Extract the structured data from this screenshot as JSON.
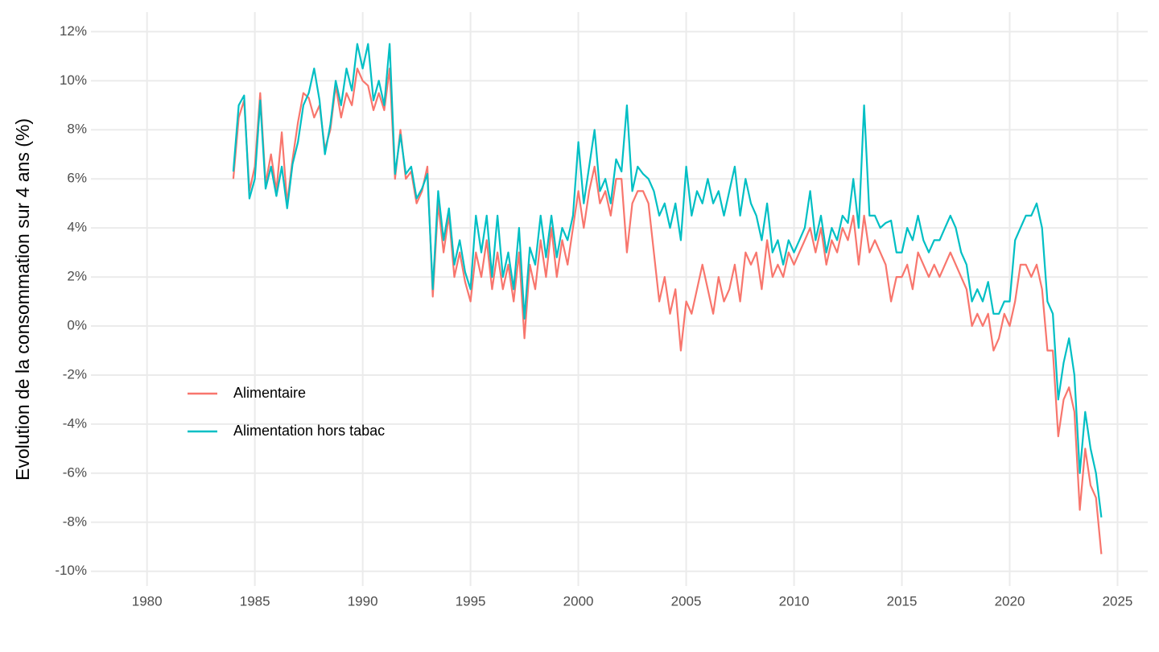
{
  "chart_data": {
    "type": "line",
    "y_label": "Evolution de la consommation sur 4 ans (%)",
    "x": [
      1984,
      1984.25,
      1984.5,
      1984.75,
      1985,
      1985.25,
      1985.5,
      1985.75,
      1986,
      1986.25,
      1986.5,
      1986.75,
      1987,
      1987.25,
      1987.5,
      1987.75,
      1988,
      1988.25,
      1988.5,
      1988.75,
      1989,
      1989.25,
      1989.5,
      1989.75,
      1990,
      1990.25,
      1990.5,
      1990.75,
      1991,
      1991.25,
      1991.5,
      1991.75,
      1992,
      1992.25,
      1992.5,
      1992.75,
      1993,
      1993.25,
      1993.5,
      1993.75,
      1994,
      1994.25,
      1994.5,
      1994.75,
      1995,
      1995.25,
      1995.5,
      1995.75,
      1996,
      1996.25,
      1996.5,
      1996.75,
      1997,
      1997.25,
      1997.5,
      1997.75,
      1998,
      1998.25,
      1998.5,
      1998.75,
      1999,
      1999.25,
      1999.5,
      1999.75,
      2000,
      2000.25,
      2000.5,
      2000.75,
      2001,
      2001.25,
      2001.5,
      2001.75,
      2002,
      2002.25,
      2002.5,
      2002.75,
      2003,
      2003.25,
      2003.5,
      2003.75,
      2004,
      2004.25,
      2004.5,
      2004.75,
      2005,
      2005.25,
      2005.5,
      2005.75,
      2006,
      2006.25,
      2006.5,
      2006.75,
      2007,
      2007.25,
      2007.5,
      2007.75,
      2008,
      2008.25,
      2008.5,
      2008.75,
      2009,
      2009.25,
      2009.5,
      2009.75,
      2010,
      2010.25,
      2010.5,
      2010.75,
      2011,
      2011.25,
      2011.5,
      2011.75,
      2012,
      2012.25,
      2012.5,
      2012.75,
      2013,
      2013.25,
      2013.5,
      2013.75,
      2014,
      2014.25,
      2014.5,
      2014.75,
      2015,
      2015.25,
      2015.5,
      2015.75,
      2016,
      2016.25,
      2016.5,
      2016.75,
      2017,
      2017.25,
      2017.5,
      2017.75,
      2018,
      2018.25,
      2018.5,
      2018.75,
      2019,
      2019.25,
      2019.5,
      2019.75,
      2020,
      2020.25,
      2020.5,
      2020.75,
      2021,
      2021.25,
      2021.5,
      2021.75,
      2022,
      2022.25,
      2022.5,
      2022.75,
      2023,
      2023.25,
      2023.5,
      2023.75,
      2024,
      2024.25
    ],
    "series": [
      {
        "name": "Alimentaire",
        "color": "#F8766D",
        "values": [
          6.0,
          8.5,
          9.2,
          5.5,
          6.5,
          9.5,
          5.8,
          7.0,
          5.5,
          7.9,
          5.0,
          6.8,
          8.3,
          9.5,
          9.3,
          8.5,
          9.0,
          7.2,
          8.0,
          9.8,
          8.5,
          9.5,
          9.0,
          10.5,
          10.0,
          9.8,
          8.8,
          9.5,
          8.8,
          10.5,
          6.0,
          8.0,
          6.0,
          6.3,
          5.0,
          5.5,
          6.5,
          1.2,
          5.0,
          3.0,
          4.5,
          2.0,
          3.0,
          1.8,
          1.0,
          3.0,
          2.0,
          3.5,
          1.5,
          3.0,
          1.5,
          2.5,
          1.0,
          3.0,
          -0.5,
          2.5,
          1.5,
          3.5,
          2.0,
          4.0,
          2.0,
          3.5,
          2.5,
          4.0,
          5.5,
          4.0,
          5.5,
          6.5,
          5.0,
          5.5,
          4.5,
          6.0,
          6.0,
          3.0,
          5.0,
          5.5,
          5.5,
          5.0,
          3.0,
          1.0,
          2.0,
          0.5,
          1.5,
          -1.0,
          1.0,
          0.5,
          1.5,
          2.5,
          1.5,
          0.5,
          2.0,
          1.0,
          1.5,
          2.5,
          1.0,
          3.0,
          2.5,
          3.0,
          1.5,
          3.5,
          2.0,
          2.5,
          2.0,
          3.0,
          2.5,
          3.0,
          3.5,
          4.0,
          3.0,
          4.0,
          2.5,
          3.5,
          3.0,
          4.0,
          3.5,
          4.5,
          2.5,
          4.5,
          3.0,
          3.5,
          3.0,
          2.5,
          1.0,
          2.0,
          2.0,
          2.5,
          1.5,
          3.0,
          2.5,
          2.0,
          2.5,
          2.0,
          2.5,
          3.0,
          2.5,
          2.0,
          1.5,
          0.0,
          0.5,
          0.0,
          0.5,
          -1.0,
          -0.5,
          0.5,
          0.0,
          1.0,
          2.5,
          2.5,
          2.0,
          2.5,
          1.5,
          -1.0,
          -1.0,
          -4.5,
          -3.0,
          -2.5,
          -3.5,
          -7.5,
          -5.0,
          -6.5,
          -7.0,
          -9.3
        ]
      },
      {
        "name": "Alimentation hors tabac",
        "color": "#00BFC4",
        "values": [
          6.3,
          9.0,
          9.4,
          5.2,
          6.0,
          9.2,
          5.6,
          6.5,
          5.3,
          6.5,
          4.8,
          6.6,
          7.5,
          9.0,
          9.5,
          10.5,
          9.2,
          7.0,
          8.2,
          10.0,
          9.0,
          10.5,
          9.6,
          11.5,
          10.5,
          11.5,
          9.2,
          10.0,
          9.0,
          11.5,
          6.2,
          7.8,
          6.2,
          6.5,
          5.2,
          5.6,
          6.2,
          1.5,
          5.5,
          3.5,
          4.8,
          2.5,
          3.5,
          2.2,
          1.5,
          4.5,
          3.0,
          4.5,
          2.0,
          4.5,
          2.0,
          3.0,
          1.5,
          4.0,
          0.3,
          3.2,
          2.5,
          4.5,
          2.8,
          4.5,
          2.8,
          4.0,
          3.5,
          4.5,
          7.5,
          5.0,
          6.5,
          8.0,
          5.5,
          6.0,
          5.0,
          6.8,
          6.3,
          9.0,
          5.5,
          6.5,
          6.2,
          6.0,
          5.5,
          4.5,
          5.0,
          4.0,
          5.0,
          3.5,
          6.5,
          4.5,
          5.5,
          5.0,
          6.0,
          5.0,
          5.5,
          4.5,
          5.5,
          6.5,
          4.5,
          6.0,
          5.0,
          4.5,
          3.5,
          5.0,
          3.0,
          3.5,
          2.5,
          3.5,
          3.0,
          3.5,
          4.0,
          5.5,
          3.5,
          4.5,
          3.0,
          4.0,
          3.5,
          4.5,
          4.2,
          6.0,
          4.0,
          9.0,
          4.5,
          4.5,
          4.0,
          4.2,
          4.3,
          3.0,
          3.0,
          4.0,
          3.5,
          4.5,
          3.5,
          3.0,
          3.5,
          3.5,
          4.0,
          4.5,
          4.0,
          3.0,
          2.5,
          1.0,
          1.5,
          1.0,
          1.8,
          0.5,
          0.5,
          1.0,
          1.0,
          3.5,
          4.0,
          4.5,
          4.5,
          5.0,
          4.0,
          1.0,
          0.5,
          -3.0,
          -1.5,
          -0.5,
          -2.0,
          -6.0,
          -3.5,
          -5.0,
          -6.0,
          -7.8
        ]
      }
    ],
    "xlim": [
      1977.4,
      2026.4
    ],
    "xticks": [
      1980,
      1985,
      1990,
      1995,
      2000,
      2005,
      2010,
      2015,
      2020,
      2025
    ],
    "ylim": [
      -10.6,
      12.8
    ],
    "yticks": [
      {
        "value": -10,
        "label": "-10%"
      },
      {
        "value": -8,
        "label": "-8%"
      },
      {
        "value": -6,
        "label": "-6%"
      },
      {
        "value": -4,
        "label": "-4%"
      },
      {
        "value": -2,
        "label": "-2%"
      },
      {
        "value": 0,
        "label": "0%"
      },
      {
        "value": 2,
        "label": "2%"
      },
      {
        "value": 4,
        "label": "4%"
      },
      {
        "value": 6,
        "label": "6%"
      },
      {
        "value": 8,
        "label": "8%"
      },
      {
        "value": 10,
        "label": "10%"
      },
      {
        "value": 12,
        "label": "12%"
      }
    ],
    "grid": true,
    "legend_position": "left"
  }
}
